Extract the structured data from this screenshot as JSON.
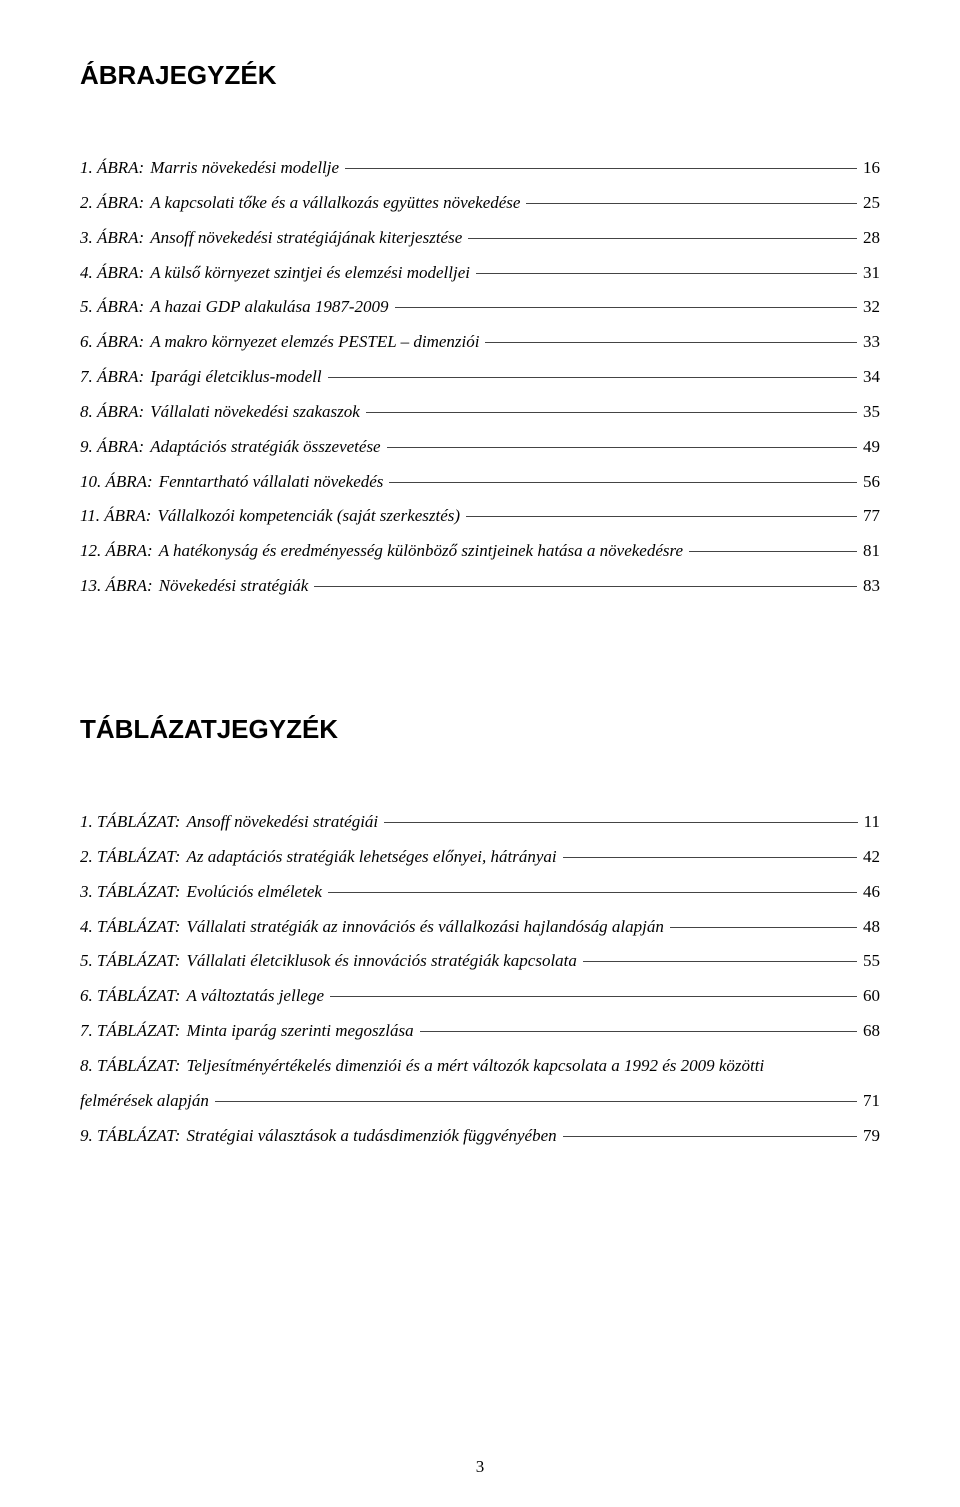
{
  "figuresTitle": "ÁBRAJEGYZÉK",
  "figures": [
    {
      "label": "1. ÁBRA:",
      "desc": "Marris növekedési modellje",
      "page": "16"
    },
    {
      "label": "2. ÁBRA:",
      "desc": "A kapcsolati tőke és a vállalkozás együttes növekedése",
      "page": "25"
    },
    {
      "label": "3. ÁBRA:",
      "desc": "Ansoff növekedési stratégiájának kiterjesztése",
      "page": "28"
    },
    {
      "label": "4. ÁBRA:",
      "desc": "A külső környezet szintjei és elemzési modelljei",
      "page": "31"
    },
    {
      "label": "5. ÁBRA:",
      "desc": "A hazai GDP alakulása 1987-2009",
      "page": "32"
    },
    {
      "label": "6. ÁBRA:",
      "desc": "A makro környezet elemzés PESTEL – dimenziói",
      "page": "33"
    },
    {
      "label": "7. ÁBRA:",
      "desc": "Iparági életciklus-modell",
      "page": "34"
    },
    {
      "label": "8. ÁBRA:",
      "desc": "Vállalati növekedési szakaszok",
      "page": "35"
    },
    {
      "label": "9. ÁBRA:",
      "desc": "Adaptációs stratégiák összevetése",
      "page": "49"
    },
    {
      "label": "10. ÁBRA:",
      "desc": "Fenntartható vállalati növekedés",
      "page": "56"
    },
    {
      "label": "11. ÁBRA:",
      "desc": "Vállalkozói kompetenciák (saját szerkesztés)",
      "page": "77"
    },
    {
      "label": "12. ÁBRA:",
      "desc": "A hatékonyság és eredményesség különböző szintjeinek hatása a növekedésre",
      "page": "81"
    },
    {
      "label": "13. ÁBRA:",
      "desc": "Növekedési stratégiák",
      "page": "83"
    }
  ],
  "tablesTitle": "TÁBLÁZATJEGYZÉK",
  "tables": [
    {
      "label": "1. TÁBLÁZAT:",
      "desc": "Ansoff növekedési stratégiái",
      "page": "11"
    },
    {
      "label": "2. TÁBLÁZAT:",
      "desc": "Az adaptációs stratégiák lehetséges előnyei, hátrányai",
      "page": "42"
    },
    {
      "label": "3. TÁBLÁZAT:",
      "desc": "Evolúciós elméletek",
      "page": "46"
    },
    {
      "label": "4. TÁBLÁZAT:",
      "desc": "Vállalati stratégiák az innovációs és vállalkozási hajlandóság alapján",
      "page": "48"
    },
    {
      "label": "5. TÁBLÁZAT:",
      "desc": "Vállalati életciklusok és innovációs stratégiák kapcsolata",
      "page": "55"
    },
    {
      "label": "6. TÁBLÁZAT:",
      "desc": "A változtatás jellege",
      "page": "60"
    },
    {
      "label": "7. TÁBLÁZAT:",
      "desc": "Minta iparág szerinti megoszlása",
      "page": "68"
    }
  ],
  "tableWrap": {
    "label": "8. TÁBLÁZAT:",
    "line1": "Teljesítményértékelés dimenziói és a mért változók kapcsolata a 1992 és 2009 közötti",
    "line2": "felmérések alapján",
    "page": "71"
  },
  "tablesAfter": [
    {
      "label": "9. TÁBLÁZAT:",
      "desc": "Stratégiai választások a tudásdimenziók függvényében",
      "page": "79"
    }
  ],
  "pageNumber": "3"
}
